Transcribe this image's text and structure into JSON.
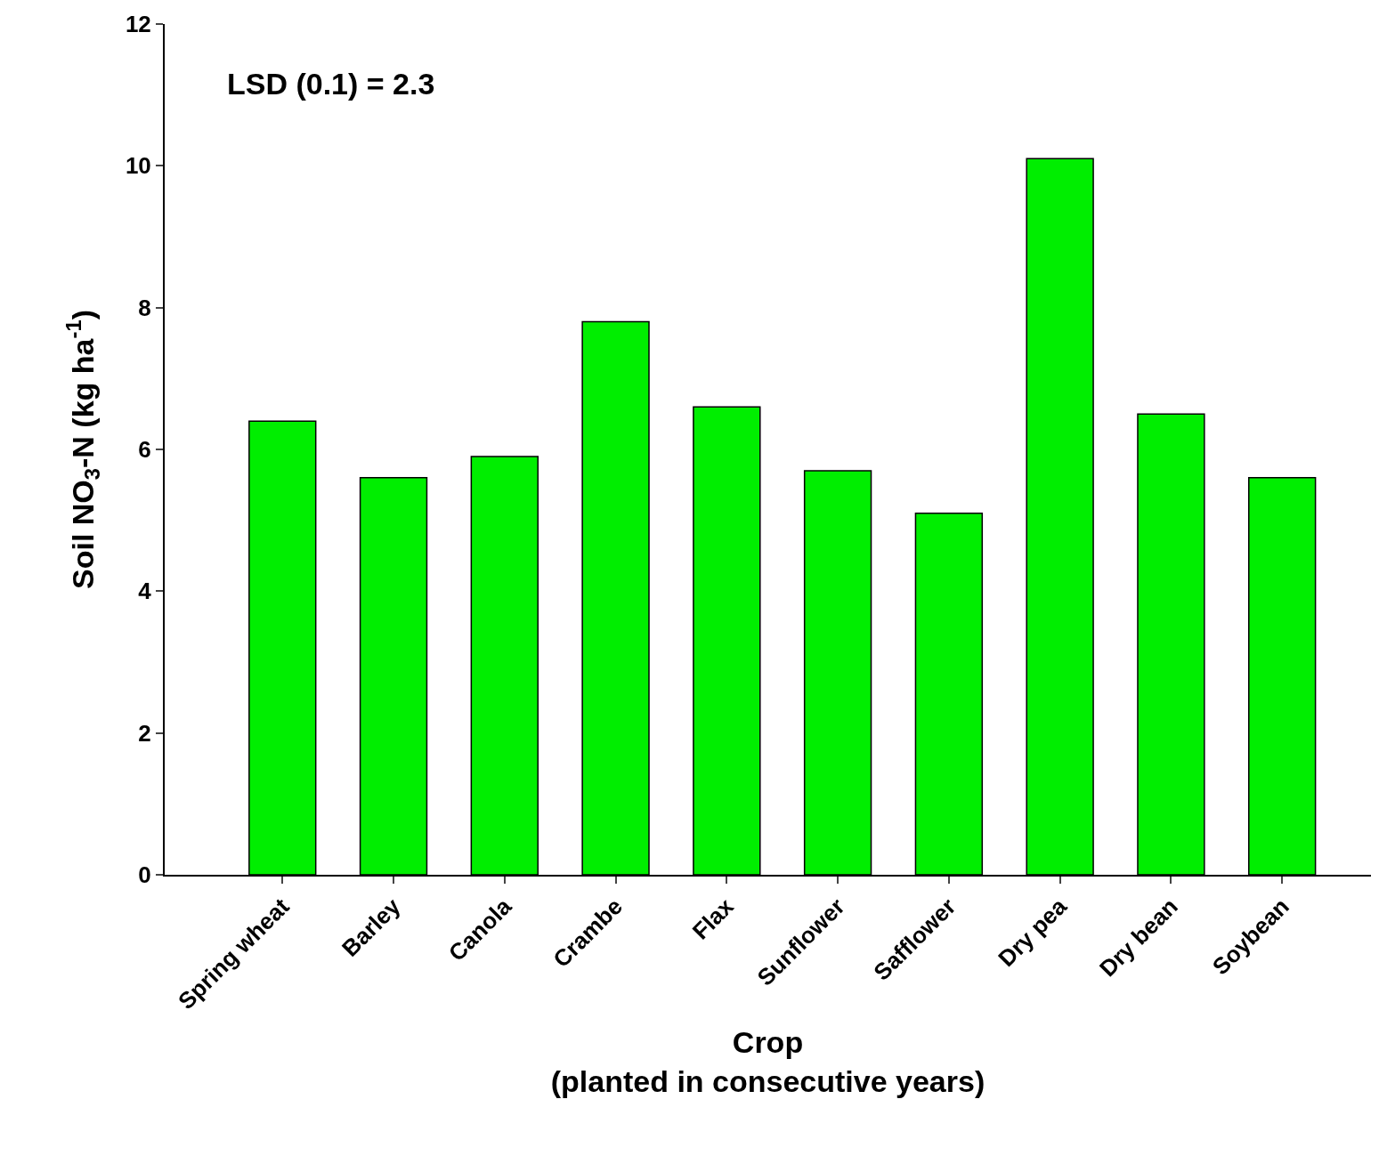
{
  "chart_data": {
    "type": "bar",
    "xlabel": "Crop\n(planted in consecutive years)",
    "ylabel": "Soil NO$_{3}$-N (kg ha$^{-1}$)",
    "categories": [
      "Spring wheat",
      "Barley",
      "Canola",
      "Crambe",
      "Flax",
      "Sunflower",
      "Safflower",
      "Dry pea",
      "Dry bean",
      "Soybean"
    ],
    "values": [
      6.4,
      5.6,
      5.9,
      7.8,
      6.6,
      5.7,
      5.1,
      10.1,
      6.5,
      5.6
    ],
    "color": "#00ee00",
    "ylim": [
      0,
      12
    ],
    "yticks": [
      0,
      2,
      4,
      6,
      8,
      10,
      12
    ],
    "annotations": [
      "LSD (0.1) = 2.3"
    ]
  }
}
